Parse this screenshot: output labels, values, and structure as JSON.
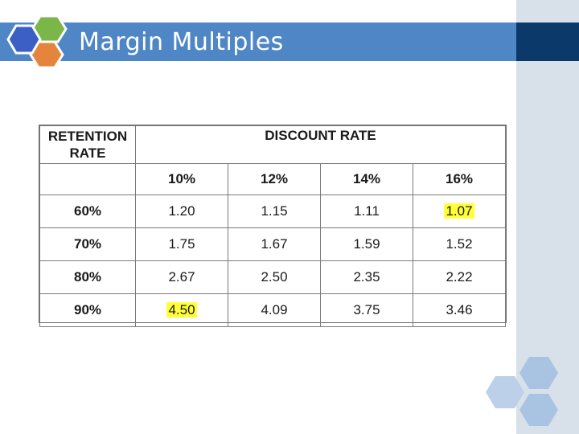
{
  "slide": {
    "title": "Margin Multiples"
  },
  "colors": {
    "title_bar": "#4f86c6",
    "title_bar_dark": "#0b3a6a",
    "right_panel": "#d8e0ea",
    "highlight": "#ffff3a"
  },
  "table": {
    "retention_header": "RETENTION RATE",
    "discount_header": "DISCOUNT RATE",
    "discount_rates": [
      "10%",
      "12%",
      "14%",
      "16%"
    ],
    "rows": [
      {
        "retention": "60%",
        "values": [
          "1.20",
          "1.15",
          "1.11",
          "1.07"
        ],
        "highlight": [
          false,
          false,
          false,
          true
        ]
      },
      {
        "retention": "70%",
        "values": [
          "1.75",
          "1.67",
          "1.59",
          "1.52"
        ],
        "highlight": [
          false,
          false,
          false,
          false
        ]
      },
      {
        "retention": "80%",
        "values": [
          "2.67",
          "2.50",
          "2.35",
          "2.22"
        ],
        "highlight": [
          false,
          false,
          false,
          false
        ]
      },
      {
        "retention": "90%",
        "values": [
          "4.50",
          "4.09",
          "3.75",
          "3.46"
        ],
        "highlight": [
          true,
          false,
          false,
          false
        ]
      }
    ]
  }
}
